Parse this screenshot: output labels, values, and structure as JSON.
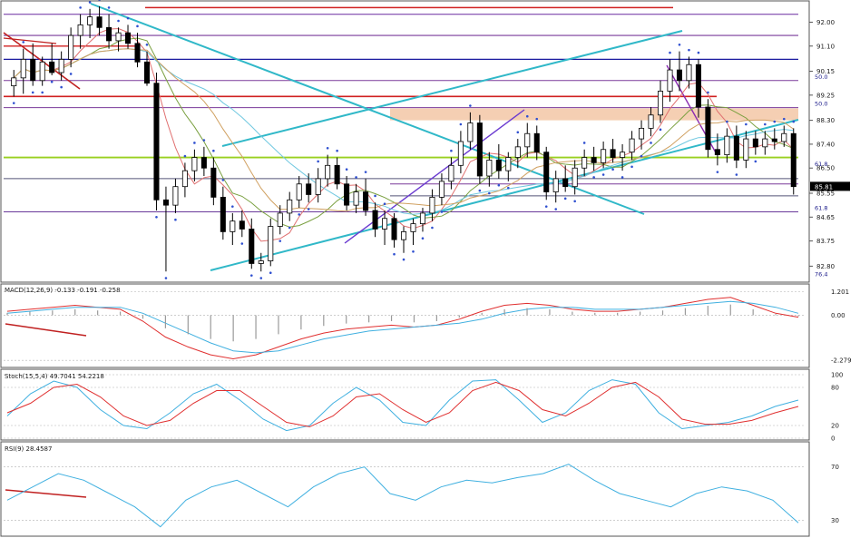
{
  "chart_data": [
    {
      "panel": "price",
      "type": "candlestick",
      "axis_ticks": [
        "92.00",
        "91.10",
        "90.15",
        "89.25",
        "88.30",
        "87.40",
        "86.50",
        "85.55",
        "84.65",
        "83.75",
        "82.80"
      ],
      "ylim": [
        82.3,
        92.7
      ],
      "last_price": "85.81",
      "fib_labels": [
        {
          "text": "50.0",
          "y": 89.8
        },
        {
          "text": "50.0",
          "y": 88.78
        },
        {
          "text": "61.8",
          "y": 86.5
        },
        {
          "text": "61.8",
          "y": 84.85
        },
        {
          "text": "76.4",
          "y": 82.35
        }
      ],
      "candles": [
        {
          "o": 89.6,
          "h": 90.2,
          "l": 89.2,
          "c": 89.9
        },
        {
          "o": 89.9,
          "h": 91.0,
          "l": 89.3,
          "c": 90.6
        },
        {
          "o": 90.6,
          "h": 91.2,
          "l": 89.6,
          "c": 89.8
        },
        {
          "o": 89.8,
          "h": 90.7,
          "l": 89.6,
          "c": 90.5
        },
        {
          "o": 90.5,
          "h": 91.2,
          "l": 90.0,
          "c": 90.1
        },
        {
          "o": 90.1,
          "h": 90.9,
          "l": 89.8,
          "c": 90.6
        },
        {
          "o": 90.6,
          "h": 91.8,
          "l": 90.3,
          "c": 91.5
        },
        {
          "o": 91.5,
          "h": 92.3,
          "l": 91.0,
          "c": 91.9
        },
        {
          "o": 91.9,
          "h": 92.5,
          "l": 91.4,
          "c": 92.2
        },
        {
          "o": 92.2,
          "h": 92.6,
          "l": 91.5,
          "c": 91.8
        },
        {
          "o": 91.8,
          "h": 92.3,
          "l": 91.0,
          "c": 91.3
        },
        {
          "o": 91.3,
          "h": 91.8,
          "l": 90.9,
          "c": 91.6
        },
        {
          "o": 91.6,
          "h": 91.9,
          "l": 91.0,
          "c": 91.2
        },
        {
          "o": 91.2,
          "h": 91.6,
          "l": 90.3,
          "c": 90.5
        },
        {
          "o": 90.5,
          "h": 90.9,
          "l": 89.6,
          "c": 89.7
        },
        {
          "o": 89.7,
          "h": 90.1,
          "l": 84.9,
          "c": 85.3
        },
        {
          "o": 85.3,
          "h": 85.8,
          "l": 82.6,
          "c": 85.1
        },
        {
          "o": 85.1,
          "h": 86.1,
          "l": 84.8,
          "c": 85.8
        },
        {
          "o": 85.8,
          "h": 86.7,
          "l": 85.4,
          "c": 86.4
        },
        {
          "o": 86.4,
          "h": 87.2,
          "l": 86.0,
          "c": 86.9
        },
        {
          "o": 86.9,
          "h": 87.3,
          "l": 86.2,
          "c": 86.5
        },
        {
          "o": 86.5,
          "h": 86.9,
          "l": 85.1,
          "c": 85.4
        },
        {
          "o": 85.4,
          "h": 85.8,
          "l": 83.8,
          "c": 84.1
        },
        {
          "o": 84.1,
          "h": 84.8,
          "l": 83.6,
          "c": 84.5
        },
        {
          "o": 84.5,
          "h": 84.9,
          "l": 83.9,
          "c": 84.2
        },
        {
          "o": 84.2,
          "h": 84.6,
          "l": 82.7,
          "c": 82.9
        },
        {
          "o": 82.9,
          "h": 83.3,
          "l": 82.6,
          "c": 83.0
        },
        {
          "o": 83.0,
          "h": 84.6,
          "l": 82.8,
          "c": 84.3
        },
        {
          "o": 84.3,
          "h": 85.1,
          "l": 84.0,
          "c": 84.8
        },
        {
          "o": 84.8,
          "h": 85.6,
          "l": 84.5,
          "c": 85.3
        },
        {
          "o": 85.3,
          "h": 86.2,
          "l": 85.0,
          "c": 85.9
        },
        {
          "o": 85.9,
          "h": 86.3,
          "l": 85.2,
          "c": 85.5
        },
        {
          "o": 85.5,
          "h": 86.5,
          "l": 85.2,
          "c": 86.1
        },
        {
          "o": 86.1,
          "h": 87.0,
          "l": 85.8,
          "c": 86.6
        },
        {
          "o": 86.6,
          "h": 86.9,
          "l": 85.7,
          "c": 85.9
        },
        {
          "o": 85.9,
          "h": 86.2,
          "l": 84.9,
          "c": 85.1
        },
        {
          "o": 85.1,
          "h": 85.9,
          "l": 84.8,
          "c": 85.6
        },
        {
          "o": 85.6,
          "h": 86.1,
          "l": 84.7,
          "c": 84.9
        },
        {
          "o": 84.9,
          "h": 85.2,
          "l": 83.9,
          "c": 84.2
        },
        {
          "o": 84.2,
          "h": 84.9,
          "l": 83.6,
          "c": 84.6
        },
        {
          "o": 84.6,
          "h": 84.8,
          "l": 83.5,
          "c": 83.8
        },
        {
          "o": 83.8,
          "h": 84.3,
          "l": 83.3,
          "c": 84.1
        },
        {
          "o": 84.1,
          "h": 84.6,
          "l": 83.6,
          "c": 84.4
        },
        {
          "o": 84.4,
          "h": 85.0,
          "l": 84.1,
          "c": 84.8
        },
        {
          "o": 84.8,
          "h": 85.7,
          "l": 84.5,
          "c": 85.4
        },
        {
          "o": 85.4,
          "h": 86.3,
          "l": 85.1,
          "c": 86.0
        },
        {
          "o": 86.0,
          "h": 86.9,
          "l": 85.7,
          "c": 86.6
        },
        {
          "o": 86.6,
          "h": 87.9,
          "l": 86.3,
          "c": 87.5
        },
        {
          "o": 87.5,
          "h": 88.6,
          "l": 87.2,
          "c": 88.2
        },
        {
          "o": 88.2,
          "h": 88.5,
          "l": 85.9,
          "c": 86.2
        },
        {
          "o": 86.2,
          "h": 87.1,
          "l": 85.8,
          "c": 86.8
        },
        {
          "o": 86.8,
          "h": 87.4,
          "l": 86.1,
          "c": 86.4
        },
        {
          "o": 86.4,
          "h": 87.1,
          "l": 86.0,
          "c": 86.9
        },
        {
          "o": 86.9,
          "h": 87.6,
          "l": 86.5,
          "c": 87.3
        },
        {
          "o": 87.3,
          "h": 88.2,
          "l": 86.9,
          "c": 87.8
        },
        {
          "o": 87.8,
          "h": 88.1,
          "l": 86.8,
          "c": 87.1
        },
        {
          "o": 87.1,
          "h": 87.3,
          "l": 85.3,
          "c": 85.6
        },
        {
          "o": 85.6,
          "h": 86.4,
          "l": 85.2,
          "c": 86.1
        },
        {
          "o": 86.1,
          "h": 86.6,
          "l": 85.6,
          "c": 85.8
        },
        {
          "o": 85.8,
          "h": 86.8,
          "l": 85.5,
          "c": 86.5
        },
        {
          "o": 86.5,
          "h": 87.2,
          "l": 86.2,
          "c": 86.9
        },
        {
          "o": 86.9,
          "h": 87.3,
          "l": 86.4,
          "c": 86.7
        },
        {
          "o": 86.7,
          "h": 87.5,
          "l": 86.5,
          "c": 87.2
        },
        {
          "o": 87.2,
          "h": 87.6,
          "l": 86.7,
          "c": 86.9
        },
        {
          "o": 86.9,
          "h": 87.4,
          "l": 86.4,
          "c": 87.1
        },
        {
          "o": 87.1,
          "h": 87.9,
          "l": 86.8,
          "c": 87.6
        },
        {
          "o": 87.6,
          "h": 88.3,
          "l": 87.2,
          "c": 88.0
        },
        {
          "o": 88.0,
          "h": 88.8,
          "l": 87.7,
          "c": 88.5
        },
        {
          "o": 88.5,
          "h": 89.8,
          "l": 88.2,
          "c": 89.4
        },
        {
          "o": 89.4,
          "h": 90.6,
          "l": 89.0,
          "c": 90.2
        },
        {
          "o": 90.2,
          "h": 90.9,
          "l": 89.4,
          "c": 89.8
        },
        {
          "o": 89.8,
          "h": 90.7,
          "l": 89.5,
          "c": 90.4
        },
        {
          "o": 90.4,
          "h": 90.6,
          "l": 88.4,
          "c": 88.8
        },
        {
          "o": 88.8,
          "h": 89.1,
          "l": 86.9,
          "c": 87.2
        },
        {
          "o": 87.2,
          "h": 87.8,
          "l": 86.6,
          "c": 87.0
        },
        {
          "o": 87.0,
          "h": 88.0,
          "l": 86.7,
          "c": 87.7
        },
        {
          "o": 87.7,
          "h": 88.1,
          "l": 86.5,
          "c": 86.8
        },
        {
          "o": 86.8,
          "h": 87.9,
          "l": 86.5,
          "c": 87.6
        },
        {
          "o": 87.6,
          "h": 87.9,
          "l": 87.0,
          "c": 87.3
        },
        {
          "o": 87.3,
          "h": 87.9,
          "l": 87.0,
          "c": 87.6
        },
        {
          "o": 87.6,
          "h": 88.0,
          "l": 87.2,
          "c": 87.5
        },
        {
          "o": 87.5,
          "h": 88.1,
          "l": 87.3,
          "c": 87.8
        },
        {
          "o": 87.8,
          "h": 88.0,
          "l": 85.5,
          "c": 85.8
        }
      ]
    },
    {
      "panel": "macd",
      "type": "line",
      "title": "MACD(12,26,9) -0.133 -0.191 -0.258",
      "axis_ticks": [
        "1.201",
        "0.00",
        "-2.279"
      ],
      "ylim": [
        -2.5,
        1.35
      ],
      "series": [
        {
          "color": "#e03030",
          "values": [
            0.2,
            0.3,
            0.4,
            0.5,
            0.4,
            0.3,
            -0.3,
            -1.1,
            -1.6,
            -2.0,
            -2.2,
            -2.0,
            -1.6,
            -1.2,
            -0.9,
            -0.7,
            -0.6,
            -0.5,
            -0.6,
            -0.5,
            -0.2,
            0.2,
            0.5,
            0.6,
            0.5,
            0.3,
            0.2,
            0.2,
            0.3,
            0.4,
            0.6,
            0.8,
            0.9,
            0.5,
            0.1,
            -0.1
          ]
        },
        {
          "color": "#40b0e0",
          "values": [
            0.1,
            0.2,
            0.3,
            0.4,
            0.4,
            0.4,
            0.1,
            -0.4,
            -0.9,
            -1.4,
            -1.8,
            -1.9,
            -1.8,
            -1.5,
            -1.2,
            -1.0,
            -0.8,
            -0.7,
            -0.6,
            -0.5,
            -0.4,
            -0.2,
            0.1,
            0.3,
            0.4,
            0.4,
            0.3,
            0.3,
            0.3,
            0.4,
            0.5,
            0.6,
            0.7,
            0.6,
            0.4,
            0.1
          ]
        }
      ]
    },
    {
      "panel": "stoch",
      "type": "line",
      "title": "Stoch(15,5,4) 49.7041 54.2218",
      "axis_ticks": [
        "100",
        "80",
        "20",
        "0"
      ],
      "ylim": [
        0,
        100
      ],
      "series": [
        {
          "color": "#40b0e0",
          "values": [
            35,
            70,
            90,
            80,
            45,
            20,
            15,
            40,
            70,
            85,
            60,
            30,
            12,
            20,
            55,
            80,
            60,
            25,
            20,
            60,
            90,
            92,
            60,
            25,
            40,
            75,
            92,
            85,
            40,
            15,
            20,
            25,
            35,
            50,
            60
          ]
        },
        {
          "color": "#e03030",
          "values": [
            40,
            55,
            80,
            85,
            65,
            35,
            20,
            28,
            55,
            75,
            75,
            50,
            25,
            18,
            35,
            65,
            70,
            45,
            25,
            40,
            75,
            88,
            75,
            45,
            35,
            55,
            80,
            88,
            65,
            30,
            22,
            22,
            28,
            40,
            50
          ]
        }
      ]
    },
    {
      "panel": "rsi",
      "type": "line",
      "title": "RSI(9) 28.4587",
      "axis_ticks": [
        "70",
        "30"
      ],
      "ylim": [
        20,
        80
      ],
      "series": [
        {
          "color": "#40b0e0",
          "values": [
            45,
            55,
            65,
            60,
            50,
            40,
            25,
            45,
            55,
            60,
            50,
            40,
            55,
            65,
            70,
            50,
            45,
            55,
            60,
            58,
            62,
            65,
            72,
            60,
            50,
            45,
            40,
            50,
            55,
            52,
            45,
            28
          ]
        }
      ]
    }
  ]
}
